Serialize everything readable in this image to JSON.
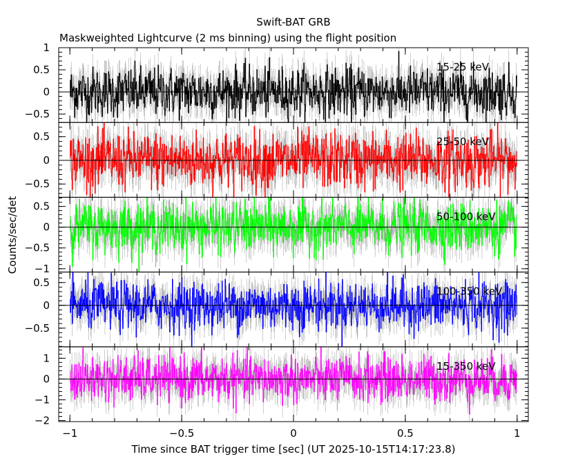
{
  "chart_data": {
    "type": "line",
    "title": "Swift-BAT GRB",
    "subtitle": "Maskweighted Lightcurve (2 ms binning) using the flight position",
    "xlabel": "Time since BAT trigger time [sec] (UT 2025-10-15T14:17:23.8)",
    "ylabel": "Counts/sec/det",
    "xlim": [
      -1.05,
      1.05
    ],
    "x_ticks": [
      -1,
      -0.5,
      0,
      0.5,
      1
    ],
    "x_tick_labels": [
      "−1",
      "−0.5",
      "0",
      "0.5",
      "1"
    ],
    "bin_size_sec": 0.002,
    "x_range_data": [
      -1,
      1
    ],
    "panels": [
      {
        "name": "15-25 keV",
        "color": "#000000",
        "ylim": [
          -0.69,
          1.0
        ],
        "yticks": [
          -0.5,
          0,
          0.5,
          1
        ],
        "ytick_labels": [
          "−0.5",
          "0",
          "0.5",
          "1"
        ],
        "noise_sigma": 0.28,
        "mean": 0
      },
      {
        "name": "25-50 keV",
        "color": "#ff0000",
        "ylim": [
          -0.78,
          0.8
        ],
        "yticks": [
          -0.5,
          0,
          0.5
        ],
        "ytick_labels": [
          "−0.5",
          "0",
          "0.5"
        ],
        "noise_sigma": 0.3,
        "mean": 0
      },
      {
        "name": "50-100 keV",
        "color": "#00ff00",
        "ylim": [
          -1.08,
          0.72
        ],
        "yticks": [
          -1,
          -0.5,
          0,
          0.5
        ],
        "ytick_labels": [
          "−1",
          "−0.5",
          "0",
          "0.5"
        ],
        "noise_sigma": 0.3,
        "mean": 0
      },
      {
        "name": "100-350 keV",
        "color": "#0000ff",
        "ylim": [
          -0.91,
          0.73
        ],
        "yticks": [
          -0.5,
          0,
          0.5
        ],
        "ytick_labels": [
          "−0.5",
          "0",
          "0.5"
        ],
        "noise_sigma": 0.27,
        "mean": 0
      },
      {
        "name": "15-350 keV",
        "color": "#ff00ff",
        "ylim": [
          -2.05,
          1.55
        ],
        "yticks": [
          -2,
          -1,
          0,
          1
        ],
        "ytick_labels": [
          "−2",
          "−1",
          "0",
          "1"
        ],
        "noise_sigma": 0.55,
        "mean": 0
      }
    ],
    "grid": false,
    "legend": "none"
  }
}
